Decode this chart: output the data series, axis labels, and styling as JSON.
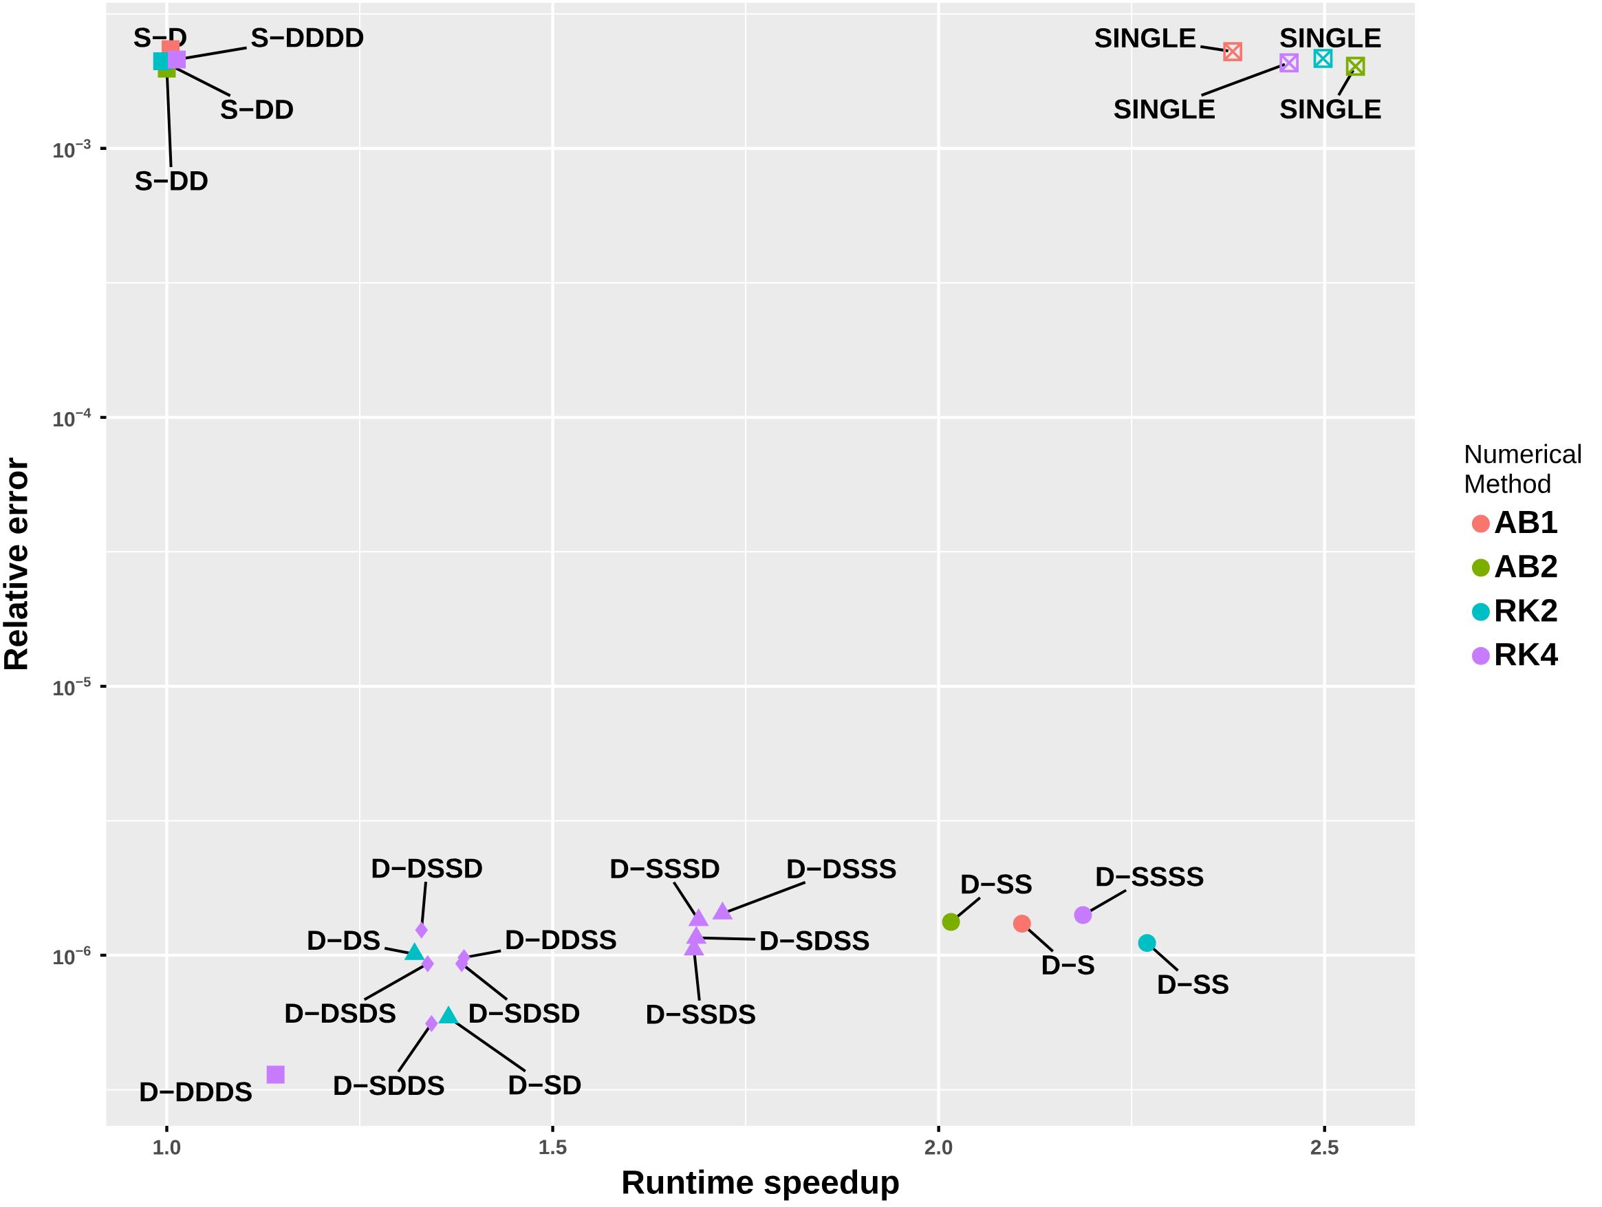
{
  "chart_data": {
    "type": "scatter",
    "xlabel": "Runtime speedup",
    "ylabel": "Relative error",
    "legend_title": "Numerical Method",
    "log": "y",
    "grid": true,
    "legend": "right",
    "xlim": [
      0.9216,
      2.617
    ],
    "ylim": [
      2.32e-07,
      0.00348
    ],
    "xticks": [
      {
        "value": 1.0,
        "label": "1.0"
      },
      {
        "value": 1.5,
        "label": "1.5"
      },
      {
        "value": 2.0,
        "label": "2.0"
      },
      {
        "value": 2.5,
        "label": "2.5"
      }
    ],
    "yticks": [
      {
        "value": 1e-06,
        "label": "10$^{−6}$"
      },
      {
        "value": 1e-05,
        "label": "10$^{−5}$"
      },
      {
        "value": 0.0001,
        "label": "10$^{−4}$"
      },
      {
        "value": 0.001,
        "label": "10$^{−3}$"
      }
    ],
    "series": [
      {
        "name": "AB1",
        "color": "#f8766d",
        "marker": "circle",
        "x": [
          2.108
        ],
        "values": [
          1.31e-06
        ]
      },
      {
        "name": "AB2",
        "color": "#7cae00",
        "marker": "circle",
        "x": [
          2.016
        ],
        "values": [
          1.33e-06
        ]
      },
      {
        "name": "RK2",
        "color": "#00bfc4",
        "marker": "circle",
        "x": [
          2.27
        ],
        "values": [
          1.11e-06
        ]
      },
      {
        "name": "RK4",
        "color": "#c77cff",
        "marker": "circle",
        "x": [
          2.187
        ],
        "values": [
          1.41e-06
        ]
      },
      {
        "color": "#f8766d",
        "marker": "square",
        "x": [
          1.005
        ],
        "values": [
          0.00234
        ]
      },
      {
        "color": "#7cae00",
        "marker": "square",
        "x": [
          1.0
        ],
        "values": [
          0.00198
        ]
      },
      {
        "color": "#00bfc4",
        "marker": "square",
        "x": [
          0.994
        ],
        "values": [
          0.00211
        ]
      },
      {
        "color": "#c77cff",
        "marker": "square",
        "x": [
          1.013,
          1.141
        ],
        "values": [
          0.00214,
          3.6e-07
        ]
      },
      {
        "color": "#00bfc4",
        "marker": "triangle",
        "x": [
          1.321,
          1.365
        ],
        "values": [
          1.01e-06,
          5.87e-07
        ]
      },
      {
        "color": "#c77cff",
        "marker": "triangle",
        "x": [
          1.689,
          1.72,
          1.686,
          1.683
        ],
        "values": [
          1.35e-06,
          1.43e-06,
          1.16e-06,
          1.05e-06
        ]
      },
      {
        "color": "#c77cff",
        "marker": "diamond",
        "x": [
          1.33,
          1.338,
          1.385,
          1.382,
          1.343
        ],
        "values": [
          1.24e-06,
          9.3e-07,
          9.8e-07,
          9.3e-07,
          5.57e-07
        ]
      },
      {
        "color": "#f8766d",
        "marker": "cross",
        "x": [
          2.381
        ],
        "values": [
          0.00229
        ]
      },
      {
        "color": "#7cae00",
        "marker": "cross",
        "x": [
          2.54
        ],
        "values": [
          0.00202
        ]
      },
      {
        "color": "#00bfc4",
        "marker": "cross",
        "x": [
          2.498
        ],
        "values": [
          0.00216
        ]
      },
      {
        "color": "#c77cff",
        "marker": "cross",
        "x": [
          2.454
        ],
        "values": [
          0.00208
        ]
      }
    ],
    "annotations": [
      {
        "text": "S−D",
        "x": 1.005,
        "y": 0.00234
      },
      {
        "text": "S−DDDD",
        "x": 1.013,
        "y": 0.00214
      },
      {
        "text": "S−DD",
        "x": 0.994,
        "y": 0.00211
      },
      {
        "text": "S−DD",
        "x": 1.0,
        "y": 0.00198
      },
      {
        "text": "SINGLE",
        "x": 2.381,
        "y": 0.00229
      },
      {
        "text": "SINGLE",
        "x": 2.454,
        "y": 0.00208
      },
      {
        "text": "SINGLE",
        "x": 2.498,
        "y": 0.00216
      },
      {
        "text": "SINGLE",
        "x": 2.54,
        "y": 0.00202
      },
      {
        "text": "D−DSSD",
        "x": 1.33,
        "y": 1.24e-06
      },
      {
        "text": "D−DS",
        "x": 1.321,
        "y": 1.01e-06
      },
      {
        "text": "D−DSDS",
        "x": 1.338,
        "y": 9.3e-07
      },
      {
        "text": "D−DDSS",
        "x": 1.385,
        "y": 9.8e-07
      },
      {
        "text": "D−SDSD",
        "x": 1.382,
        "y": 9.3e-07
      },
      {
        "text": "D−SDDS",
        "x": 1.343,
        "y": 5.57e-07
      },
      {
        "text": "D−SD",
        "x": 1.365,
        "y": 5.87e-07
      },
      {
        "text": "D−DDDS",
        "x": 1.141,
        "y": 3.6e-07
      },
      {
        "text": "D−SSSD",
        "x": 1.689,
        "y": 1.35e-06
      },
      {
        "text": "D−DSSS",
        "x": 1.72,
        "y": 1.43e-06
      },
      {
        "text": "D−SDSS",
        "x": 1.686,
        "y": 1.16e-06
      },
      {
        "text": "D−SSDS",
        "x": 1.683,
        "y": 1.05e-06
      },
      {
        "text": "D−SS",
        "x": 2.016,
        "y": 1.33e-06
      },
      {
        "text": "D−S",
        "x": 2.108,
        "y": 1.31e-06
      },
      {
        "text": "D−SSSS",
        "x": 2.187,
        "y": 1.41e-06
      },
      {
        "text": "D−SS",
        "x": 2.27,
        "y": 1.11e-06
      }
    ]
  }
}
